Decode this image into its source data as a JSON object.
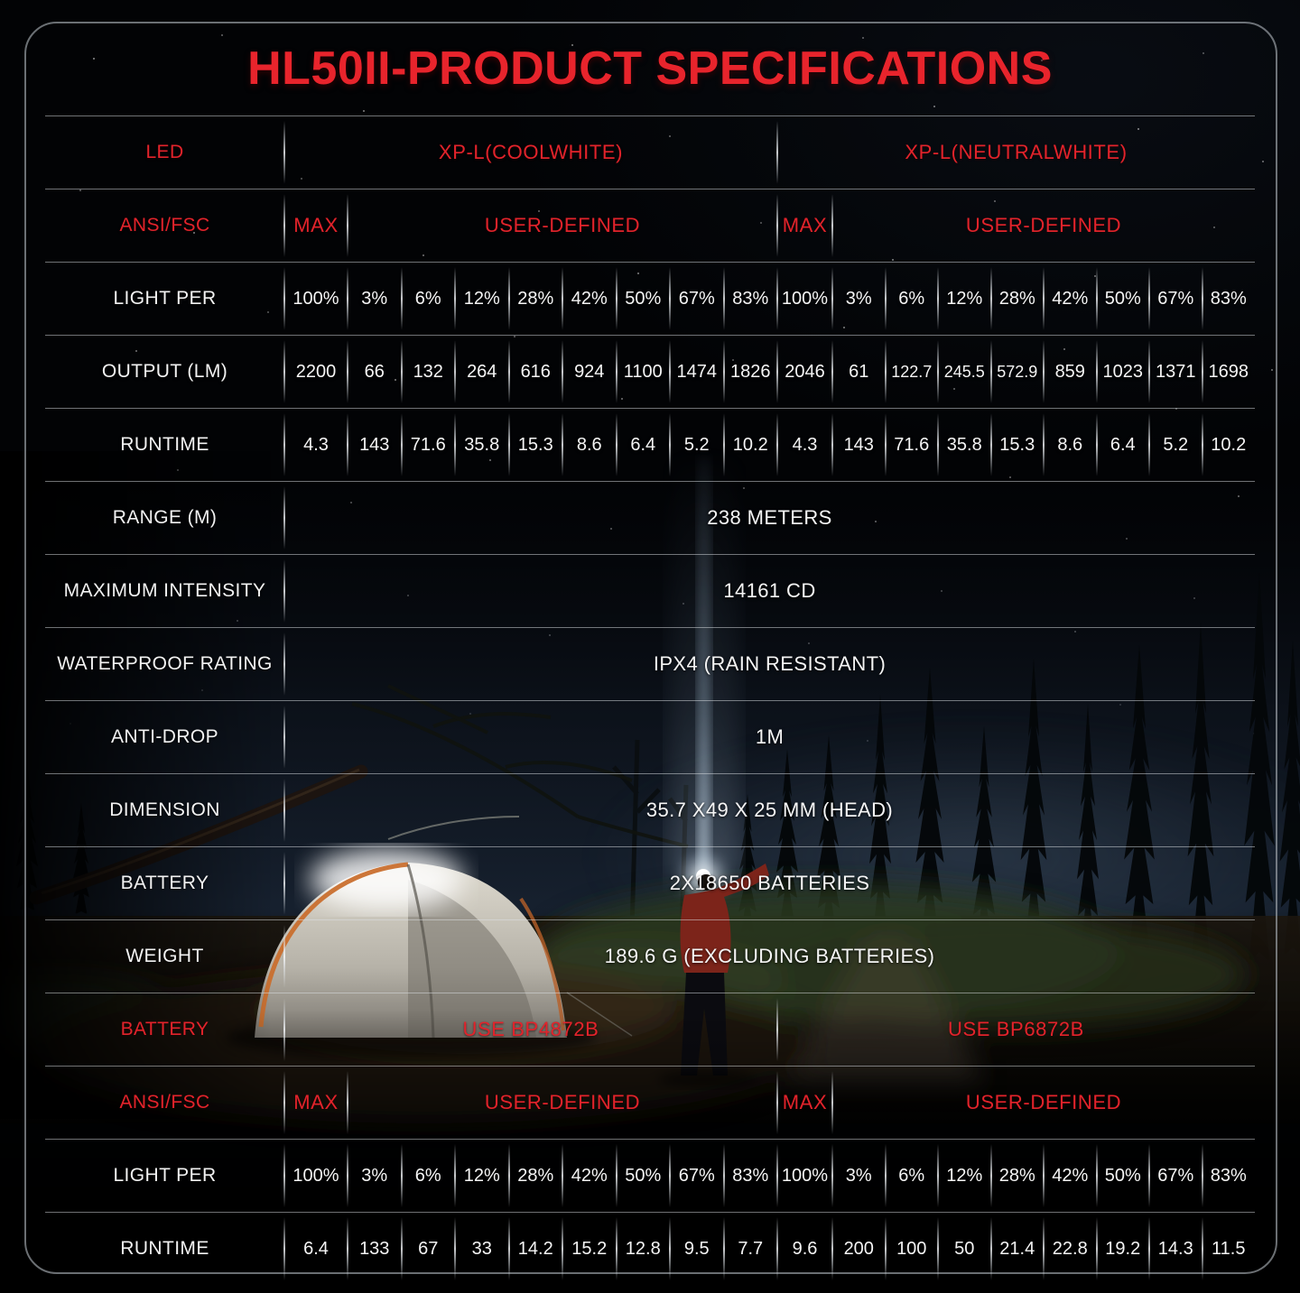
{
  "title": "HL50II-PRODUCT SPECIFICATIONS",
  "colors": {
    "accent_red": "#e2232b",
    "title_red": "#e8242c",
    "text_white": "#f5f5f5",
    "grid_line": "rgba(222,226,230,0.5)",
    "background": "#020305",
    "tent_orange": "#c96f2e",
    "beam_blue": "#cfe3f5"
  },
  "background_photo": "night camping scene: gray dome tent with orange trim, person in red jacket shining headlamp beam at the sky, conifer silhouettes, starry sky",
  "table": {
    "rows": [
      {
        "kind": "split2",
        "label": "LED",
        "red": true,
        "cells": [
          "XP-L(COOLWHITE)",
          "XP-L(NEUTRALWHITE)"
        ]
      },
      {
        "kind": "modes",
        "label": "ANSI/FSC",
        "red": true,
        "cells": [
          "MAX",
          "USER-DEFINED",
          "MAX",
          "USER-DEFINED"
        ]
      },
      {
        "kind": "data",
        "label": "LIGHT PER",
        "values": [
          "100%",
          "3%",
          "6%",
          "12%",
          "28%",
          "42%",
          "50%",
          "67%",
          "83%",
          "100%",
          "3%",
          "6%",
          "12%",
          "28%",
          "42%",
          "50%",
          "67%",
          "83%"
        ]
      },
      {
        "kind": "data",
        "label": "OUTPUT (LM)",
        "values": [
          "2200",
          "66",
          "132",
          "264",
          "616",
          "924",
          "1100",
          "1474",
          "1826",
          "2046",
          "61",
          "122.7",
          "245.5",
          "572.9",
          "859",
          "1023",
          "1371",
          "1698"
        ]
      },
      {
        "kind": "data",
        "label": "RUNTIME",
        "values": [
          "4.3",
          "143",
          "71.6",
          "35.8",
          "15.3",
          "8.6",
          "6.4",
          "5.2",
          "10.2",
          "4.3",
          "143",
          "71.6",
          "35.8",
          "15.3",
          "8.6",
          "6.4",
          "5.2",
          "10.2"
        ]
      },
      {
        "kind": "full",
        "label": "RANGE (M)",
        "value": "238 METERS"
      },
      {
        "kind": "full",
        "label": "MAXIMUM INTENSITY",
        "value": "14161 CD"
      },
      {
        "kind": "full",
        "label": "WATERPROOF RATING",
        "value": "IPX4 (RAIN RESISTANT)"
      },
      {
        "kind": "full",
        "label": "ANTI-DROP",
        "value": "1M"
      },
      {
        "kind": "full",
        "label": "DIMENSION",
        "value": "35.7 X49 X 25 MM (HEAD)"
      },
      {
        "kind": "full",
        "label": "BATTERY",
        "value": "2X18650 BATTERIES"
      },
      {
        "kind": "full",
        "label": "WEIGHT",
        "value": "189.6 G (EXCLUDING BATTERIES)"
      },
      {
        "kind": "split2",
        "label": "BATTERY",
        "red": true,
        "cells": [
          "USE BP4872B",
          "USE BP6872B"
        ]
      },
      {
        "kind": "modes",
        "label": "ANSI/FSC",
        "red": true,
        "cells": [
          "MAX",
          "USER-DEFINED",
          "MAX",
          "USER-DEFINED"
        ]
      },
      {
        "kind": "data",
        "label": "LIGHT PER",
        "values": [
          "100%",
          "3%",
          "6%",
          "12%",
          "28%",
          "42%",
          "50%",
          "67%",
          "83%",
          "100%",
          "3%",
          "6%",
          "12%",
          "28%",
          "42%",
          "50%",
          "67%",
          "83%"
        ]
      },
      {
        "kind": "data",
        "label": "RUNTIME",
        "values": [
          "6.4",
          "133",
          "67",
          "33",
          "14.2",
          "15.2",
          "12.8",
          "9.5",
          "7.7",
          "9.6",
          "200",
          "100",
          "50",
          "21.4",
          "22.8",
          "19.2",
          "14.3",
          "11.5"
        ]
      }
    ]
  }
}
